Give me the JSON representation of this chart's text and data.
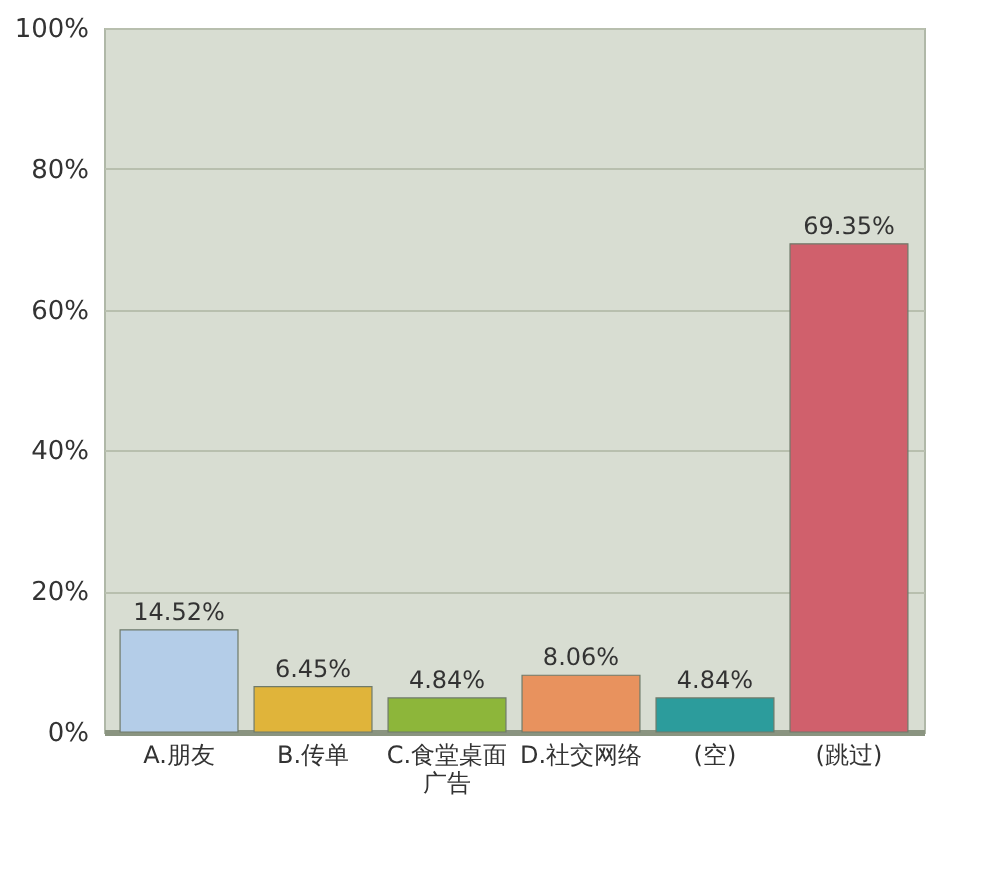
{
  "chart_data": {
    "type": "bar",
    "categories": [
      "A.朋友",
      "B.传单",
      "C.食堂桌面广告",
      "D.社交网络",
      "(空)",
      "(跳过)"
    ],
    "values": [
      14.52,
      6.45,
      4.84,
      8.06,
      4.84,
      69.35
    ],
    "colors": [
      "#b4cde8",
      "#e0b43a",
      "#8db63a",
      "#e8925e",
      "#2c9c9c",
      "#d0606c"
    ],
    "value_labels": [
      "14.52%",
      "6.45%",
      "4.84%",
      "8.06%",
      "4.84%",
      "69.35%"
    ],
    "ylim": [
      0,
      100
    ],
    "yticks": [
      {
        "value": 0,
        "label": "0%"
      },
      {
        "value": 20,
        "label": "20%"
      },
      {
        "value": 40,
        "label": "40%"
      },
      {
        "value": 60,
        "label": "60%"
      },
      {
        "value": 80,
        "label": "80%"
      },
      {
        "value": 100,
        "label": "100%"
      }
    ],
    "grid": "y"
  }
}
